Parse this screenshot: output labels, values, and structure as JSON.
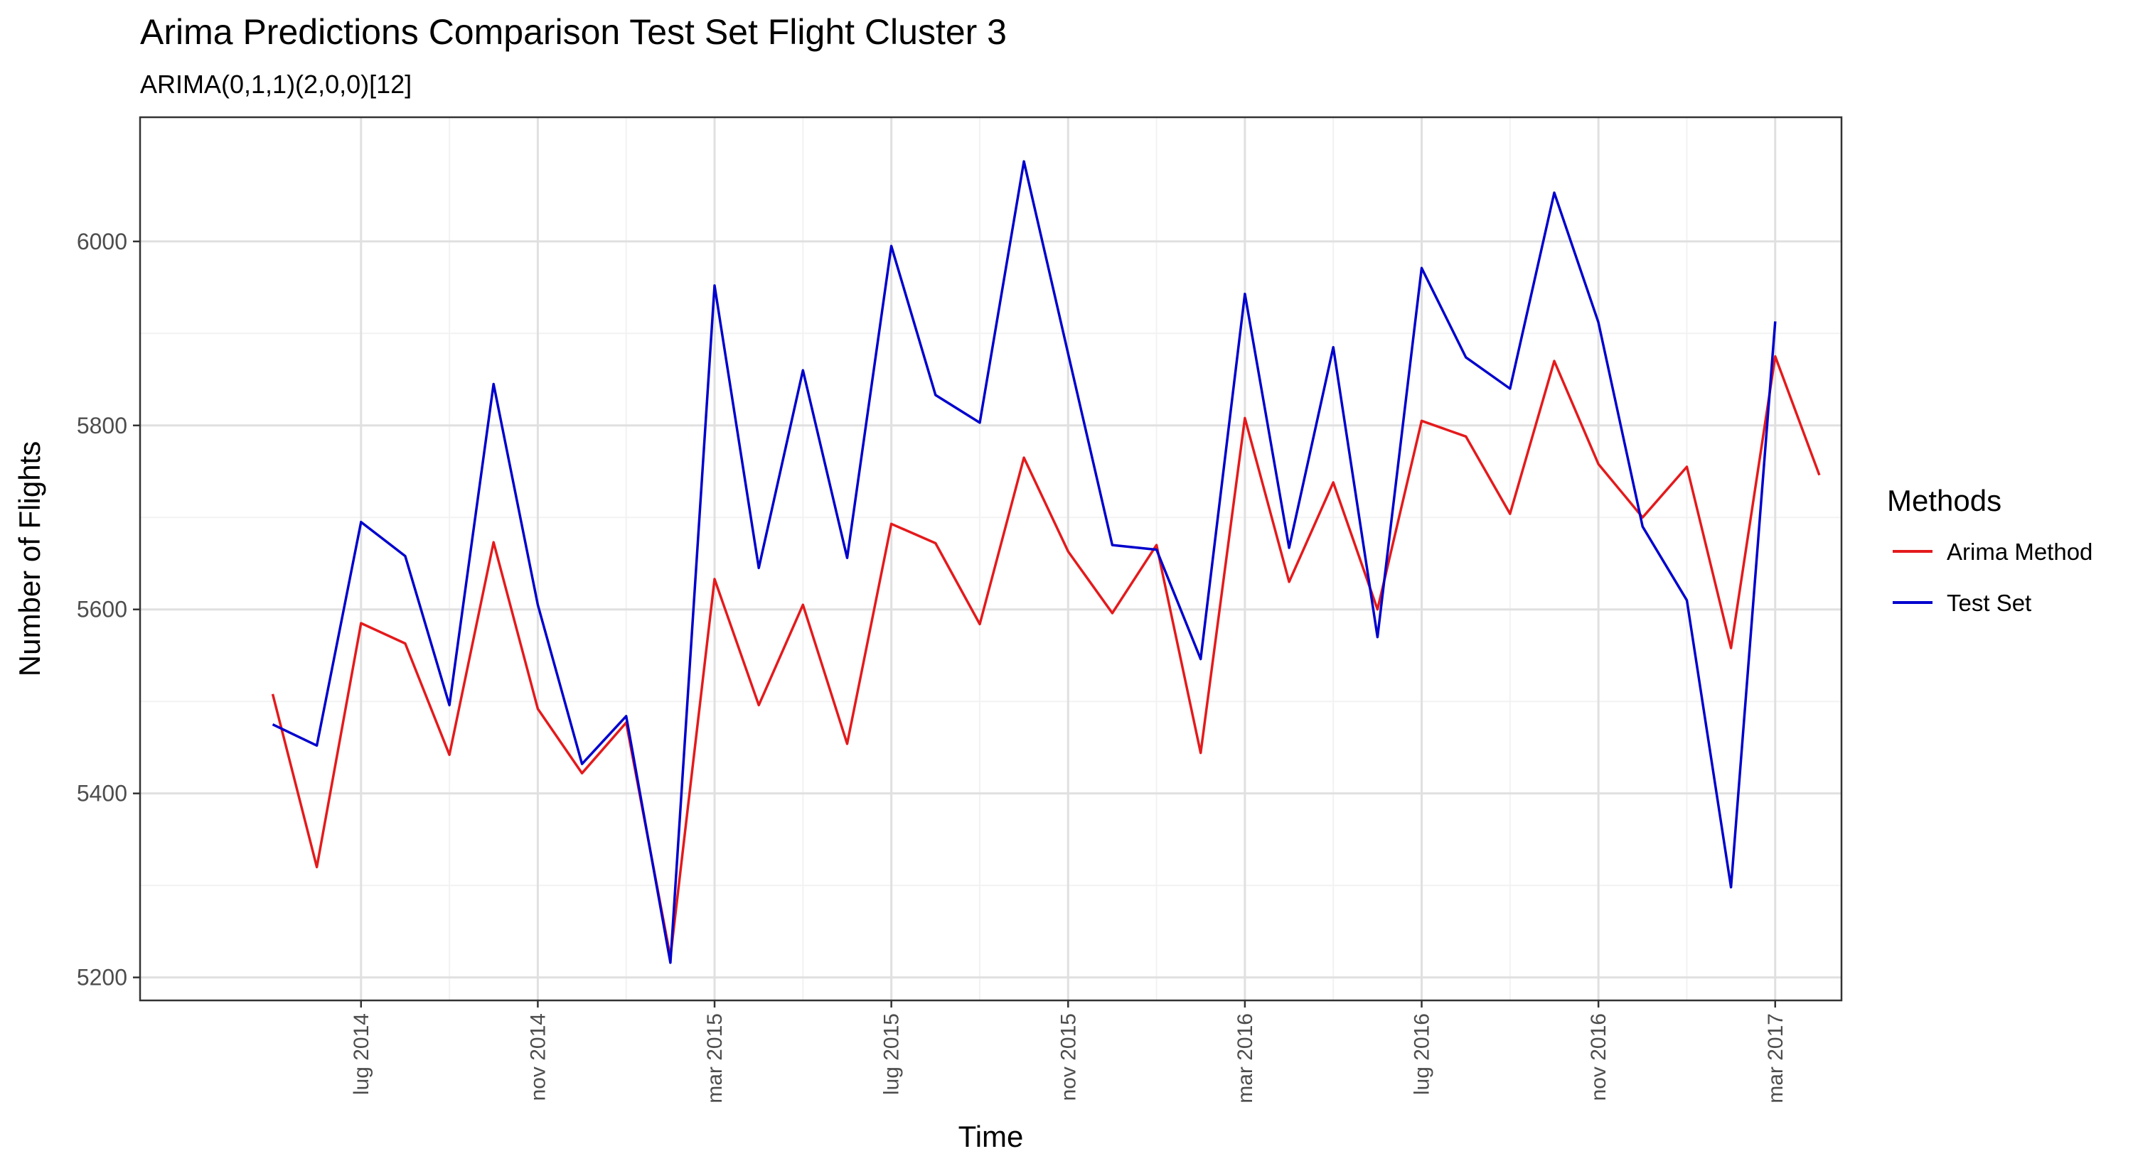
{
  "chart_data": {
    "type": "line",
    "title": "Arima Predictions Comparison Test Set Flight Cluster 3",
    "subtitle": "ARIMA(0,1,1)(2,0,0)[12]",
    "xlabel": "Time",
    "ylabel": "Number of Flights",
    "ylim": [
      5175,
      6135
    ],
    "yticks": [
      5200,
      5400,
      5600,
      5800,
      6000
    ],
    "xlim": [
      -3.0,
      35.5
    ],
    "xticks": [
      {
        "pos": 2,
        "label": "lug 2014"
      },
      {
        "pos": 6,
        "label": "nov 2014"
      },
      {
        "pos": 10,
        "label": "mar 2015"
      },
      {
        "pos": 14,
        "label": "lug 2015"
      },
      {
        "pos": 18,
        "label": "nov 2015"
      },
      {
        "pos": 22,
        "label": "mar 2016"
      },
      {
        "pos": 26,
        "label": "lug 2016"
      },
      {
        "pos": 30,
        "label": "nov 2016"
      },
      {
        "pos": 34,
        "label": "mar 2017"
      }
    ],
    "grid": true,
    "legend": {
      "title": "Methods",
      "position": "right"
    },
    "series": [
      {
        "name": "Arima Method",
        "color": "#e41a1c",
        "x_start": 0,
        "values": [
          5508,
          5320,
          5585,
          5563,
          5442,
          5673,
          5492,
          5422,
          5477,
          5222,
          5633,
          5496,
          5605,
          5454,
          5693,
          5672,
          5584,
          5765,
          5663,
          5596,
          5670,
          5444,
          5808,
          5630,
          5738,
          5600,
          5805,
          5788,
          5704,
          5870,
          5758,
          5700,
          5755,
          5558,
          5875,
          5746
        ]
      },
      {
        "name": "Test Set",
        "color": "#0000cd",
        "x_start": 0,
        "values": [
          5475,
          5452,
          5695,
          5658,
          5496,
          5845,
          5605,
          5432,
          5484,
          5216,
          5952,
          5645,
          5860,
          5656,
          5995,
          5833,
          5803,
          6087,
          5878,
          5670,
          5665,
          5546,
          5943,
          5667,
          5885,
          5570,
          5971,
          5874,
          5840,
          6053,
          5912,
          5690,
          5610,
          5298,
          5913
        ]
      }
    ]
  }
}
